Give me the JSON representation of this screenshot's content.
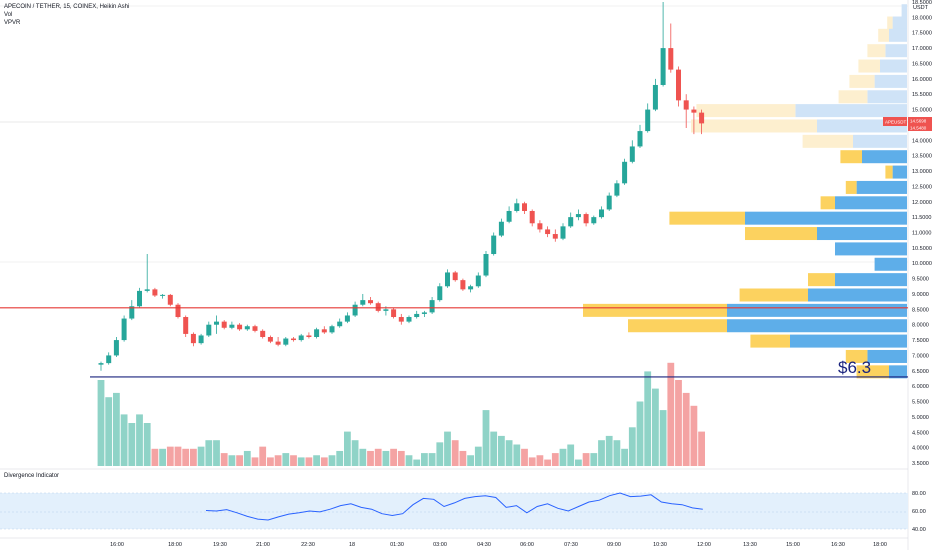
{
  "header": {
    "symbol_line": "APECOIN / TETHER, 15, COINEX, Heikin Ashi",
    "vol_label": "Vol",
    "vpvr_label": "VPVR"
  },
  "indicator": {
    "name": "Divergence Indicator",
    "levels": [
      "80.00",
      "60.00",
      "40.00"
    ]
  },
  "annotation": {
    "support_label": "$6.3"
  },
  "price_axis": {
    "currency": "USDT",
    "current_symbol": "APEUSDT",
    "current_price": "14.5698",
    "current_price_2": "14.5480",
    "ticks": [
      "18.5000",
      "18.0000",
      "17.5000",
      "17.0000",
      "16.5000",
      "16.0000",
      "15.5000",
      "15.0000",
      "14.0000",
      "13.5000",
      "13.0000",
      "12.5000",
      "12.0000",
      "11.5000",
      "11.0000",
      "10.5000",
      "10.0000",
      "9.5000",
      "9.0000",
      "8.5000",
      "8.0000",
      "7.5000",
      "7.0000",
      "6.5000",
      "6.0000",
      "5.5000",
      "5.0000",
      "4.5000",
      "4.0000",
      "3.5000"
    ]
  },
  "time_axis": {
    "labels": [
      "16:00",
      "18:00",
      "19:30",
      "21:00",
      "22:30",
      "18",
      "01:30",
      "03:00",
      "04:30",
      "06:00",
      "07:30",
      "09:00",
      "10:30",
      "12:00",
      "13:30",
      "15:00",
      "16:30",
      "18:00"
    ]
  },
  "colors": {
    "up": "#26a69a",
    "down": "#ef5350",
    "vol_up": "#8fd3c7",
    "vol_down": "#f4a3a3",
    "resistance_line": "#e53935",
    "support_line": "#1a237e",
    "vpvr_up": "#5eaee9",
    "vpvr_down": "#fcd25f",
    "vpvr_up_light": "#cfe3f7",
    "vpvr_down_light": "#fdefcf",
    "indicator_line": "#2962ff",
    "indicator_band": "#e3f0fc"
  },
  "chart_data": {
    "type": "candlestick",
    "title": "APECOIN / TETHER, 15, COINEX, Heikin Ashi",
    "price_range": [
      3.5,
      18.5
    ],
    "horizontal_levels": {
      "resistance": 8.55,
      "support": 6.3
    },
    "candles": [
      {
        "o": 6.7,
        "h": 6.8,
        "l": 6.5,
        "c": 6.75
      },
      {
        "o": 6.75,
        "h": 7.1,
        "l": 6.7,
        "c": 7.0
      },
      {
        "o": 7.0,
        "h": 7.6,
        "l": 6.95,
        "c": 7.5
      },
      {
        "o": 7.5,
        "h": 8.3,
        "l": 7.45,
        "c": 8.2
      },
      {
        "o": 8.2,
        "h": 8.8,
        "l": 8.15,
        "c": 8.6
      },
      {
        "o": 8.6,
        "h": 9.2,
        "l": 8.55,
        "c": 9.1
      },
      {
        "o": 9.1,
        "h": 10.3,
        "l": 9.05,
        "c": 9.15
      },
      {
        "o": 9.15,
        "h": 9.2,
        "l": 8.9,
        "c": 8.95
      },
      {
        "o": 8.95,
        "h": 9.0,
        "l": 8.85,
        "c": 8.97
      },
      {
        "o": 8.97,
        "h": 9.0,
        "l": 8.6,
        "c": 8.65
      },
      {
        "o": 8.65,
        "h": 8.7,
        "l": 8.2,
        "c": 8.25
      },
      {
        "o": 8.25,
        "h": 8.3,
        "l": 7.6,
        "c": 7.7
      },
      {
        "o": 7.7,
        "h": 7.75,
        "l": 7.3,
        "c": 7.4
      },
      {
        "o": 7.4,
        "h": 7.7,
        "l": 7.35,
        "c": 7.65
      },
      {
        "o": 7.65,
        "h": 8.1,
        "l": 7.6,
        "c": 8.0
      },
      {
        "o": 8.0,
        "h": 8.3,
        "l": 7.7,
        "c": 8.1
      },
      {
        "o": 8.1,
        "h": 8.15,
        "l": 7.85,
        "c": 7.9
      },
      {
        "o": 7.9,
        "h": 8.1,
        "l": 7.85,
        "c": 8.0
      },
      {
        "o": 8.0,
        "h": 8.05,
        "l": 7.8,
        "c": 7.85
      },
      {
        "o": 7.85,
        "h": 8.0,
        "l": 7.8,
        "c": 7.95
      },
      {
        "o": 7.95,
        "h": 8.0,
        "l": 7.75,
        "c": 7.8
      },
      {
        "o": 7.8,
        "h": 7.85,
        "l": 7.55,
        "c": 7.6
      },
      {
        "o": 7.6,
        "h": 7.65,
        "l": 7.4,
        "c": 7.45
      },
      {
        "o": 7.45,
        "h": 7.6,
        "l": 7.3,
        "c": 7.35
      },
      {
        "o": 7.35,
        "h": 7.6,
        "l": 7.3,
        "c": 7.55
      },
      {
        "o": 7.55,
        "h": 7.6,
        "l": 7.45,
        "c": 7.5
      },
      {
        "o": 7.5,
        "h": 7.7,
        "l": 7.45,
        "c": 7.65
      },
      {
        "o": 7.65,
        "h": 7.75,
        "l": 7.55,
        "c": 7.6
      },
      {
        "o": 7.6,
        "h": 7.9,
        "l": 7.55,
        "c": 7.85
      },
      {
        "o": 7.85,
        "h": 7.95,
        "l": 7.7,
        "c": 7.75
      },
      {
        "o": 7.75,
        "h": 8.0,
        "l": 7.7,
        "c": 7.95
      },
      {
        "o": 7.95,
        "h": 8.2,
        "l": 7.9,
        "c": 8.1
      },
      {
        "o": 8.1,
        "h": 8.4,
        "l": 8.05,
        "c": 8.3
      },
      {
        "o": 8.3,
        "h": 8.75,
        "l": 8.25,
        "c": 8.65
      },
      {
        "o": 8.65,
        "h": 9.0,
        "l": 8.6,
        "c": 8.8
      },
      {
        "o": 8.8,
        "h": 8.9,
        "l": 8.65,
        "c": 8.7
      },
      {
        "o": 8.7,
        "h": 8.75,
        "l": 8.4,
        "c": 8.45
      },
      {
        "o": 8.45,
        "h": 8.6,
        "l": 8.3,
        "c": 8.5
      },
      {
        "o": 8.5,
        "h": 8.55,
        "l": 8.2,
        "c": 8.25
      },
      {
        "o": 8.25,
        "h": 8.35,
        "l": 8.0,
        "c": 8.1
      },
      {
        "o": 8.1,
        "h": 8.3,
        "l": 8.05,
        "c": 8.25
      },
      {
        "o": 8.25,
        "h": 8.45,
        "l": 8.2,
        "c": 8.35
      },
      {
        "o": 8.35,
        "h": 8.45,
        "l": 8.25,
        "c": 8.4
      },
      {
        "o": 8.4,
        "h": 8.9,
        "l": 8.35,
        "c": 8.8
      },
      {
        "o": 8.8,
        "h": 9.35,
        "l": 8.75,
        "c": 9.25
      },
      {
        "o": 9.25,
        "h": 9.8,
        "l": 9.2,
        "c": 9.7
      },
      {
        "o": 9.7,
        "h": 9.75,
        "l": 9.4,
        "c": 9.45
      },
      {
        "o": 9.45,
        "h": 9.5,
        "l": 9.1,
        "c": 9.15
      },
      {
        "o": 9.15,
        "h": 9.3,
        "l": 9.05,
        "c": 9.25
      },
      {
        "o": 9.25,
        "h": 9.7,
        "l": 9.2,
        "c": 9.6
      },
      {
        "o": 9.6,
        "h": 10.4,
        "l": 9.55,
        "c": 10.3
      },
      {
        "o": 10.3,
        "h": 11.0,
        "l": 10.25,
        "c": 10.9
      },
      {
        "o": 10.9,
        "h": 11.45,
        "l": 10.85,
        "c": 11.35
      },
      {
        "o": 11.35,
        "h": 11.85,
        "l": 11.3,
        "c": 11.7
      },
      {
        "o": 11.7,
        "h": 12.1,
        "l": 11.65,
        "c": 11.95
      },
      {
        "o": 11.95,
        "h": 12.0,
        "l": 11.6,
        "c": 11.7
      },
      {
        "o": 11.7,
        "h": 11.75,
        "l": 11.2,
        "c": 11.3
      },
      {
        "o": 11.3,
        "h": 11.4,
        "l": 11.0,
        "c": 11.1
      },
      {
        "o": 11.1,
        "h": 11.2,
        "l": 10.85,
        "c": 10.95
      },
      {
        "o": 10.95,
        "h": 11.1,
        "l": 10.7,
        "c": 10.8
      },
      {
        "o": 10.8,
        "h": 11.3,
        "l": 10.75,
        "c": 11.2
      },
      {
        "o": 11.2,
        "h": 11.65,
        "l": 11.15,
        "c": 11.5
      },
      {
        "o": 11.5,
        "h": 11.75,
        "l": 11.4,
        "c": 11.6
      },
      {
        "o": 11.6,
        "h": 11.65,
        "l": 11.2,
        "c": 11.3
      },
      {
        "o": 11.3,
        "h": 11.55,
        "l": 11.25,
        "c": 11.5
      },
      {
        "o": 11.5,
        "h": 11.85,
        "l": 11.45,
        "c": 11.75
      },
      {
        "o": 11.75,
        "h": 12.3,
        "l": 11.7,
        "c": 12.2
      },
      {
        "o": 12.2,
        "h": 12.7,
        "l": 12.15,
        "c": 12.6
      },
      {
        "o": 12.6,
        "h": 13.4,
        "l": 12.55,
        "c": 13.3
      },
      {
        "o": 13.3,
        "h": 14.0,
        "l": 13.25,
        "c": 13.8
      },
      {
        "o": 13.8,
        "h": 14.5,
        "l": 13.75,
        "c": 14.3
      },
      {
        "o": 14.3,
        "h": 15.2,
        "l": 14.25,
        "c": 15.0
      },
      {
        "o": 15.0,
        "h": 16.0,
        "l": 14.95,
        "c": 15.8
      },
      {
        "o": 15.8,
        "h": 18.5,
        "l": 15.75,
        "c": 17.0
      },
      {
        "o": 17.0,
        "h": 17.8,
        "l": 16.2,
        "c": 16.3
      },
      {
        "o": 16.3,
        "h": 16.4,
        "l": 15.1,
        "c": 15.3
      },
      {
        "o": 15.3,
        "h": 15.5,
        "l": 14.4,
        "c": 15.0
      },
      {
        "o": 15.0,
        "h": 15.1,
        "l": 14.2,
        "c": 14.9
      },
      {
        "o": 14.9,
        "h": 15.0,
        "l": 14.2,
        "c": 14.55
      }
    ],
    "volume": [
      2.0,
      1.6,
      1.7,
      1.2,
      1.0,
      1.2,
      1.0,
      0.4,
      0.4,
      0.45,
      0.45,
      0.4,
      0.4,
      0.45,
      0.6,
      0.6,
      0.3,
      0.25,
      0.25,
      0.35,
      0.2,
      0.45,
      0.2,
      0.25,
      0.3,
      0.25,
      0.2,
      0.2,
      0.25,
      0.2,
      0.25,
      0.35,
      0.8,
      0.6,
      0.4,
      0.35,
      0.4,
      0.35,
      0.4,
      0.35,
      0.25,
      0.15,
      0.3,
      0.3,
      0.55,
      0.8,
      0.6,
      0.35,
      0.25,
      0.45,
      1.3,
      0.8,
      0.7,
      0.6,
      0.5,
      0.4,
      0.2,
      0.25,
      0.15,
      0.3,
      0.4,
      0.5,
      0.15,
      0.3,
      0.3,
      0.6,
      0.7,
      0.6,
      0.4,
      0.9,
      1.5,
      2.2,
      1.8,
      1.3,
      2.4,
      2.0,
      1.7,
      1.4,
      0.8
    ],
    "vpvr_profile": [
      {
        "price": 18.2,
        "buy": 3,
        "sell": 0,
        "hi": true
      },
      {
        "price": 17.8,
        "buy": 8,
        "sell": 3,
        "hi": true
      },
      {
        "price": 17.4,
        "buy": 10,
        "sell": 6,
        "hi": true
      },
      {
        "price": 16.9,
        "buy": 12,
        "sell": 10,
        "hi": true
      },
      {
        "price": 16.4,
        "buy": 15,
        "sell": 12,
        "hi": true
      },
      {
        "price": 15.9,
        "buy": 18,
        "sell": 14,
        "hi": true
      },
      {
        "price": 15.4,
        "buy": 22,
        "sell": 16,
        "hi": true
      },
      {
        "price": 14.95,
        "buy": 62,
        "sell": 55,
        "hi": true
      },
      {
        "price": 14.45,
        "buy": 50,
        "sell": 70,
        "hi": true
      },
      {
        "price": 13.95,
        "buy": 30,
        "sell": 28,
        "hi": true
      },
      {
        "price": 13.45,
        "buy": 25,
        "sell": 12,
        "hi": false
      },
      {
        "price": 12.95,
        "buy": 8,
        "sell": 4,
        "hi": false
      },
      {
        "price": 12.45,
        "buy": 28,
        "sell": 6,
        "hi": false
      },
      {
        "price": 11.95,
        "buy": 40,
        "sell": 8,
        "hi": false
      },
      {
        "price": 11.45,
        "buy": 90,
        "sell": 42,
        "hi": false
      },
      {
        "price": 10.95,
        "buy": 50,
        "sell": 40,
        "hi": false
      },
      {
        "price": 10.45,
        "buy": 40,
        "sell": 0,
        "hi": false
      },
      {
        "price": 9.95,
        "buy": 18,
        "sell": 0,
        "hi": false
      },
      {
        "price": 9.45,
        "buy": 40,
        "sell": 15,
        "hi": false
      },
      {
        "price": 8.95,
        "buy": 55,
        "sell": 38,
        "hi": false
      },
      {
        "price": 8.45,
        "buy": 100,
        "sell": 80,
        "hi": false
      },
      {
        "price": 7.95,
        "buy": 100,
        "sell": 55,
        "hi": false
      },
      {
        "price": 7.45,
        "buy": 65,
        "sell": 22,
        "hi": false
      },
      {
        "price": 6.95,
        "buy": 22,
        "sell": 12,
        "hi": false
      },
      {
        "price": 6.45,
        "buy": 10,
        "sell": 18,
        "hi": false
      }
    ],
    "indicator_values": [
      60.5,
      60.0,
      61.5,
      58.0,
      54.0,
      51.0,
      50.0,
      53.5,
      56.5,
      58.0,
      60.0,
      59.0,
      62.0,
      66.0,
      68.0,
      64.0,
      62.0,
      57.0,
      55.0,
      57.0,
      67.0,
      74.0,
      73.0,
      65.0,
      69.0,
      74.0,
      76.0,
      77.0,
      75.0,
      64.0,
      66.0,
      58.0,
      65.0,
      68.0,
      63.0,
      60.0,
      65.0,
      70.0,
      72.0,
      77.0,
      80.0,
      76.0,
      76.5,
      78.0,
      70.0,
      68.0,
      67.0,
      63.5,
      62.0
    ]
  }
}
